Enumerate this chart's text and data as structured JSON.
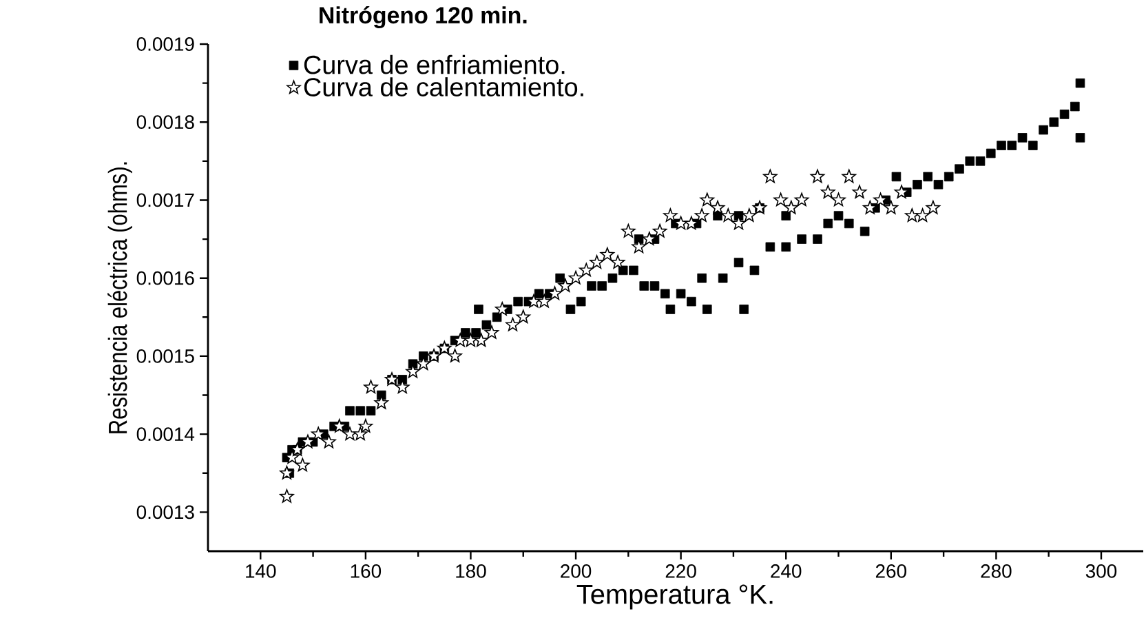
{
  "chart_data": {
    "type": "scatter",
    "title": "Nitrógeno 120 min.",
    "xlabel": "Temperatura °K.",
    "ylabel": "Resistencia eléctrica (ohms).",
    "xlim": [
      130,
      308
    ],
    "ylim": [
      0.00125,
      0.0019
    ],
    "xticks": [
      140,
      160,
      180,
      200,
      220,
      240,
      260,
      280,
      300
    ],
    "yticks": [
      0.0013,
      0.0014,
      0.0015,
      0.0016,
      0.0017,
      0.0018,
      0.0019
    ],
    "legend": "top left",
    "grid": false,
    "series": [
      {
        "name": "Curva de enfriamiento.",
        "color": "#000000",
        "marker": "square",
        "x": [
          145,
          145.5,
          146,
          147,
          148,
          150,
          152,
          154,
          156,
          157,
          159,
          161,
          163,
          165,
          167,
          169,
          171,
          173,
          175,
          177,
          179,
          181,
          181.5,
          183,
          185,
          187,
          189,
          191,
          193,
          195,
          197,
          199,
          201,
          203,
          205,
          207,
          209,
          211,
          213,
          215,
          217,
          218,
          220,
          222,
          225,
          224,
          228,
          232,
          231,
          234,
          237,
          240,
          243,
          246,
          212,
          215,
          219,
          223,
          227,
          231,
          235,
          240,
          248,
          250,
          252,
          255,
          257,
          259,
          261,
          263,
          265,
          267,
          269,
          271,
          273,
          275,
          277,
          279,
          281,
          283,
          285,
          287,
          289,
          291,
          293,
          295,
          296,
          296
        ],
        "values": [
          0.00137,
          0.00135,
          0.00138,
          0.00138,
          0.00139,
          0.00139,
          0.0014,
          0.00141,
          0.00141,
          0.00143,
          0.00143,
          0.00143,
          0.00145,
          0.00147,
          0.00147,
          0.00149,
          0.0015,
          0.0015,
          0.00151,
          0.00152,
          0.00153,
          0.00153,
          0.00156,
          0.00154,
          0.00155,
          0.00156,
          0.00157,
          0.00157,
          0.00158,
          0.00158,
          0.0016,
          0.00156,
          0.00157,
          0.00159,
          0.00159,
          0.0016,
          0.00161,
          0.00161,
          0.00159,
          0.00159,
          0.00158,
          0.00156,
          0.00158,
          0.00157,
          0.00156,
          0.0016,
          0.0016,
          0.00156,
          0.00162,
          0.00161,
          0.00164,
          0.00164,
          0.00165,
          0.00165,
          0.00165,
          0.00165,
          0.00167,
          0.00167,
          0.00168,
          0.00168,
          0.00169,
          0.00168,
          0.00167,
          0.00168,
          0.00167,
          0.00166,
          0.00169,
          0.0017,
          0.00173,
          0.00171,
          0.00172,
          0.00173,
          0.00172,
          0.00173,
          0.00174,
          0.00175,
          0.00175,
          0.00176,
          0.00177,
          0.00177,
          0.00178,
          0.00177,
          0.00179,
          0.0018,
          0.00181,
          0.00182,
          0.00185,
          0.00178
        ]
      },
      {
        "name": "Curva de calentamiento.",
        "color": "#000000",
        "marker": "star",
        "x": [
          145,
          145,
          146,
          147,
          148,
          149,
          151,
          153,
          155,
          157,
          159,
          160,
          161,
          163,
          165,
          167,
          169,
          171,
          173,
          175,
          177,
          178,
          180,
          182,
          184,
          186,
          188,
          190,
          192,
          194,
          196,
          198,
          200,
          202,
          204,
          206,
          208,
          210,
          212,
          214,
          216,
          218,
          220,
          222,
          224,
          225,
          227,
          229,
          231,
          233,
          235,
          237,
          239,
          241,
          243,
          246,
          248,
          250,
          252,
          254,
          256,
          258,
          260,
          262,
          264,
          266,
          268
        ],
        "values": [
          0.00132,
          0.00135,
          0.00137,
          0.00138,
          0.00136,
          0.00139,
          0.0014,
          0.00139,
          0.00141,
          0.0014,
          0.0014,
          0.00141,
          0.00146,
          0.00144,
          0.00147,
          0.00146,
          0.00148,
          0.00149,
          0.0015,
          0.00151,
          0.0015,
          0.00152,
          0.00152,
          0.00152,
          0.00153,
          0.00156,
          0.00154,
          0.00155,
          0.00157,
          0.00157,
          0.00158,
          0.00159,
          0.0016,
          0.00161,
          0.00162,
          0.00163,
          0.00162,
          0.00166,
          0.00164,
          0.00165,
          0.00166,
          0.00168,
          0.00167,
          0.00167,
          0.00168,
          0.0017,
          0.00169,
          0.00168,
          0.00167,
          0.00168,
          0.00169,
          0.00173,
          0.0017,
          0.00169,
          0.0017,
          0.00173,
          0.00171,
          0.0017,
          0.00173,
          0.00171,
          0.00169,
          0.0017,
          0.00169,
          0.00171,
          0.00168,
          0.00168,
          0.00169
        ]
      }
    ]
  }
}
